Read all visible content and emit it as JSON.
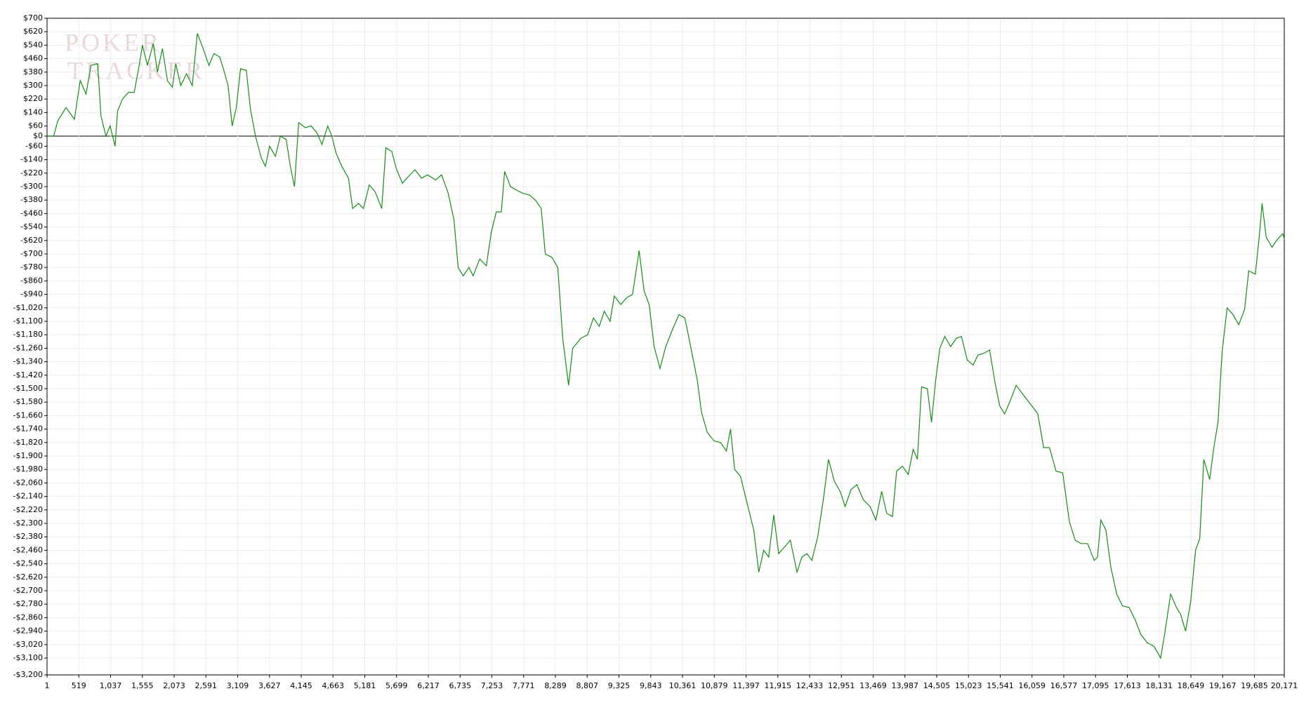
{
  "chart_data": {
    "type": "line",
    "watermark": [
      "POKER",
      "TRACKER"
    ],
    "x": [
      1,
      108,
      176,
      311,
      447,
      542,
      636,
      718,
      826,
      880,
      961,
      1029,
      1110,
      1151,
      1232,
      1327,
      1422,
      1503,
      1557,
      1638,
      1733,
      1801,
      1882,
      1963,
      2044,
      2099,
      2180,
      2275,
      2369,
      2451,
      2545,
      2640,
      2721,
      2816,
      2884,
      2952,
      3019,
      3087,
      3155,
      3250,
      3317,
      3399,
      3494,
      3561,
      3629,
      3724,
      3805,
      3900,
      3967,
      4035,
      4103,
      4211,
      4306,
      4401,
      4482,
      4577,
      4644,
      4712,
      4807,
      4915,
      4983,
      5078,
      5159,
      5254,
      5349,
      5457,
      5525,
      5620,
      5701,
      5796,
      5891,
      5999,
      6107,
      6202,
      6337,
      6433,
      6541,
      6636,
      6703,
      6785,
      6879,
      6947,
      7055,
      7163,
      7244,
      7325,
      7407,
      7461,
      7556,
      7651,
      7759,
      7867,
      7962,
      8057,
      8124,
      8232,
      8327,
      8408,
      8503,
      8571,
      8706,
      8815,
      8909,
      9004,
      9085,
      9180,
      9248,
      9356,
      9451,
      9546,
      9654,
      9735,
      9817,
      9898,
      9993,
      10088,
      10196,
      10304,
      10399,
      10494,
      10602,
      10670,
      10765,
      10873,
      10981,
      11076,
      11144,
      11211,
      11306,
      11414,
      11523,
      11604,
      11685,
      11766,
      11848,
      11929,
      12024,
      12119,
      12227,
      12308,
      12389,
      12470,
      12565,
      12660,
      12741,
      12836,
      12931,
      13012,
      13107,
      13202,
      13310,
      13418,
      13513,
      13608,
      13689,
      13784,
      13851,
      13946,
      14041,
      14122,
      14190,
      14258,
      14352,
      14420,
      14488,
      14556,
      14637,
      14732,
      14826,
      14908,
      15003,
      15097,
      15179,
      15273,
      15368,
      15449,
      15530,
      15612,
      15706,
      15801,
      15882,
      15964,
      16072,
      16153,
      16248,
      16343,
      16451,
      16559,
      16668,
      16762,
      16857,
      16965,
      17073,
      17127,
      17181,
      17263,
      17344,
      17439,
      17534,
      17642,
      17737,
      17832,
      17940,
      18048,
      18156,
      18224,
      18319,
      18413,
      18481,
      18562,
      18644,
      18725,
      18793,
      18860,
      18955,
      19023,
      19091,
      19158,
      19240,
      19335,
      19429,
      19524,
      19592,
      19700,
      19768,
      19809,
      19877,
      19971,
      20066,
      20147,
      20171
    ],
    "series": [
      {
        "color": "#1a8a1a",
        "values": [
          0,
          0,
          90,
          170,
          100,
          330,
          250,
          420,
          430,
          120,
          0,
          60,
          -60,
          150,
          220,
          260,
          260,
          420,
          540,
          420,
          550,
          380,
          520,
          330,
          290,
          430,
          300,
          370,
          300,
          610,
          520,
          420,
          490,
          470,
          390,
          300,
          60,
          170,
          400,
          390,
          160,
          0,
          -130,
          -180,
          -60,
          -120,
          0,
          -20,
          -180,
          -300,
          80,
          50,
          60,
          20,
          -50,
          60,
          0,
          -100,
          -180,
          -250,
          -430,
          -400,
          -430,
          -290,
          -330,
          -430,
          -70,
          -90,
          -200,
          -280,
          -240,
          -200,
          -250,
          -230,
          -260,
          -230,
          -340,
          -500,
          -780,
          -830,
          -780,
          -830,
          -730,
          -770,
          -570,
          -450,
          -450,
          -210,
          -300,
          -320,
          -340,
          -350,
          -380,
          -430,
          -700,
          -720,
          -780,
          -1200,
          -1480,
          -1260,
          -1200,
          -1180,
          -1080,
          -1130,
          -1040,
          -1100,
          -950,
          -1000,
          -960,
          -940,
          -680,
          -920,
          -1000,
          -1250,
          -1380,
          -1250,
          -1150,
          -1060,
          -1080,
          -1250,
          -1450,
          -1640,
          -1760,
          -1810,
          -1820,
          -1870,
          -1740,
          -1980,
          -2020,
          -2180,
          -2340,
          -2590,
          -2460,
          -2500,
          -2250,
          -2480,
          -2440,
          -2400,
          -2590,
          -2500,
          -2480,
          -2520,
          -2380,
          -2150,
          -1920,
          -2050,
          -2110,
          -2200,
          -2100,
          -2070,
          -2160,
          -2200,
          -2280,
          -2110,
          -2240,
          -2260,
          -1990,
          -1960,
          -2010,
          -1860,
          -1920,
          -1490,
          -1500,
          -1700,
          -1450,
          -1260,
          -1190,
          -1250,
          -1200,
          -1190,
          -1330,
          -1360,
          -1300,
          -1290,
          -1270,
          -1450,
          -1600,
          -1650,
          -1570,
          -1480,
          -1520,
          -1560,
          -1610,
          -1650,
          -1850,
          -1850,
          -1990,
          -2000,
          -2290,
          -2400,
          -2420,
          -2420,
          -2520,
          -2500,
          -2280,
          -2340,
          -2560,
          -2720,
          -2790,
          -2800,
          -2870,
          -2960,
          -3010,
          -3030,
          -3100,
          -2950,
          -2720,
          -2800,
          -2840,
          -2940,
          -2770,
          -2460,
          -2390,
          -1920,
          -2040,
          -1850,
          -1700,
          -1280,
          -1020,
          -1060,
          -1120,
          -1030,
          -800,
          -820,
          -580,
          -400,
          -600,
          -660,
          -610,
          -580,
          -610
        ]
      }
    ],
    "xlim": [
      1,
      20171
    ],
    "ylim": [
      -3200,
      700
    ],
    "grid": true,
    "xticks": [
      1,
      519,
      {
        "value": 1037,
        "label": "1,037"
      },
      {
        "value": 1555,
        "label": "1,555"
      },
      {
        "value": 2073,
        "label": "2,073"
      },
      {
        "value": 2591,
        "label": "2,591"
      },
      {
        "value": 3109,
        "label": "3,109"
      },
      {
        "value": 3627,
        "label": "3,627"
      },
      {
        "value": 4145,
        "label": "4,145"
      },
      {
        "value": 4663,
        "label": "4,663"
      },
      {
        "value": 5181,
        "label": "5,181"
      },
      {
        "value": 5699,
        "label": "5,699"
      },
      {
        "value": 6217,
        "label": "6,217"
      },
      {
        "value": 6735,
        "label": "6,735"
      },
      {
        "value": 7253,
        "label": "7,253"
      },
      {
        "value": 7771,
        "label": "7,771"
      },
      {
        "value": 8289,
        "label": "8,289"
      },
      {
        "value": 8807,
        "label": "8,807"
      },
      {
        "value": 9325,
        "label": "9,325"
      },
      {
        "value": 9843,
        "label": "9,843"
      },
      {
        "value": 10361,
        "label": "10,361"
      },
      {
        "value": 10879,
        "label": "10,879"
      },
      {
        "value": 11397,
        "label": "11,397"
      },
      {
        "value": 11915,
        "label": "11,915"
      },
      {
        "value": 12433,
        "label": "12,433"
      },
      {
        "value": 12951,
        "label": "12,951"
      },
      {
        "value": 13469,
        "label": "13,469"
      },
      {
        "value": 13987,
        "label": "13,987"
      },
      {
        "value": 14505,
        "label": "14,505"
      },
      {
        "value": 15023,
        "label": "15,023"
      },
      {
        "value": 15541,
        "label": "15,541"
      },
      {
        "value": 16059,
        "label": "16,059"
      },
      {
        "value": 16577,
        "label": "16,577"
      },
      {
        "value": 17095,
        "label": "17,095"
      },
      {
        "value": 17613,
        "label": "17,613"
      },
      {
        "value": 18131,
        "label": "18,131"
      },
      {
        "value": 18649,
        "label": "18,649"
      },
      {
        "value": 19167,
        "label": "19,167"
      },
      {
        "value": 19685,
        "label": "19,685"
      },
      {
        "value": 20171,
        "label": "20,171"
      }
    ],
    "yticks": [
      {
        "value": 700,
        "label": "$700"
      },
      {
        "value": 620,
        "label": "$620"
      },
      {
        "value": 540,
        "label": "$540"
      },
      {
        "value": 460,
        "label": "$460"
      },
      {
        "value": 380,
        "label": "$380"
      },
      {
        "value": 300,
        "label": "$300"
      },
      {
        "value": 220,
        "label": "$220"
      },
      {
        "value": 140,
        "label": "$140"
      },
      {
        "value": 60,
        "label": "$60"
      },
      {
        "value": 0,
        "label": "$0"
      },
      {
        "value": -60,
        "label": "-$60"
      },
      {
        "value": -140,
        "label": "-$140"
      },
      {
        "value": -220,
        "label": "-$220"
      },
      {
        "value": -300,
        "label": "-$300"
      },
      {
        "value": -380,
        "label": "-$380"
      },
      {
        "value": -460,
        "label": "-$460"
      },
      {
        "value": -540,
        "label": "-$540"
      },
      {
        "value": -620,
        "label": "-$620"
      },
      {
        "value": -700,
        "label": "-$700"
      },
      {
        "value": -780,
        "label": "-$780"
      },
      {
        "value": -860,
        "label": "-$860"
      },
      {
        "value": -940,
        "label": "-$940"
      },
      {
        "value": -1020,
        "label": "-$1,020"
      },
      {
        "value": -1100,
        "label": "-$1,100"
      },
      {
        "value": -1180,
        "label": "-$1,180"
      },
      {
        "value": -1260,
        "label": "-$1,260"
      },
      {
        "value": -1340,
        "label": "-$1,340"
      },
      {
        "value": -1420,
        "label": "-$1,420"
      },
      {
        "value": -1500,
        "label": "-$1,500"
      },
      {
        "value": -1580,
        "label": "-$1,580"
      },
      {
        "value": -1660,
        "label": "-$1,660"
      },
      {
        "value": -1740,
        "label": "-$1,740"
      },
      {
        "value": -1820,
        "label": "-$1,820"
      },
      {
        "value": -1900,
        "label": "-$1,900"
      },
      {
        "value": -1980,
        "label": "-$1,980"
      },
      {
        "value": -2060,
        "label": "-$2,060"
      },
      {
        "value": -2140,
        "label": "-$2,140"
      },
      {
        "value": -2220,
        "label": "-$2,220"
      },
      {
        "value": -2300,
        "label": "-$2,300"
      },
      {
        "value": -2380,
        "label": "-$2,380"
      },
      {
        "value": -2460,
        "label": "-$2,460"
      },
      {
        "value": -2540,
        "label": "-$2,540"
      },
      {
        "value": -2620,
        "label": "-$2,620"
      },
      {
        "value": -2700,
        "label": "-$2,700"
      },
      {
        "value": -2780,
        "label": "-$2,780"
      },
      {
        "value": -2860,
        "label": "-$2,860"
      },
      {
        "value": -2940,
        "label": "-$2,940"
      },
      {
        "value": -3020,
        "label": "-$3,020"
      },
      {
        "value": -3100,
        "label": "-$3,100"
      },
      {
        "value": -3200,
        "label": "-$3,200"
      }
    ]
  }
}
